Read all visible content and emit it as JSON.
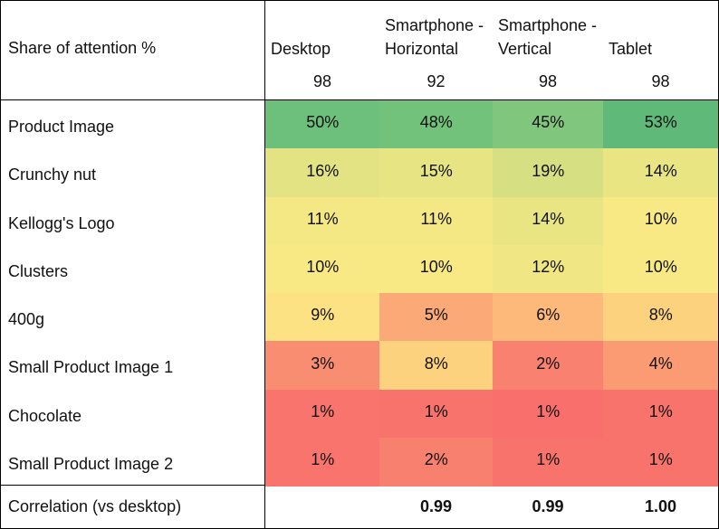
{
  "header": {
    "title": "Share of attention %",
    "columns": [
      "Desktop",
      "Smartphone - Horizontal",
      "Smartphone - Vertical",
      "Tablet"
    ],
    "counts": [
      98,
      92,
      98,
      98
    ]
  },
  "rows": [
    {
      "label": "Product Image",
      "cells": [
        "50%",
        "48%",
        "45%",
        "53%"
      ],
      "colors": [
        "#6cc07b",
        "#72c27c",
        "#80c67d",
        "#5fba79"
      ]
    },
    {
      "label": "Crunchy nut",
      "cells": [
        "16%",
        "15%",
        "19%",
        "14%"
      ],
      "colors": [
        "#e3e383",
        "#e6e483",
        "#d6df82",
        "#e9e583"
      ]
    },
    {
      "label": "Kellogg's Logo",
      "cells": [
        "11%",
        "11%",
        "14%",
        "10%"
      ],
      "colors": [
        "#f4e884",
        "#f4e884",
        "#e9e583",
        "#f8e984"
      ]
    },
    {
      "label": "Clusters",
      "cells": [
        "10%",
        "10%",
        "12%",
        "10%"
      ],
      "colors": [
        "#f8e984",
        "#f8e984",
        "#f0e784",
        "#f8e984"
      ]
    },
    {
      "label": "400g",
      "cells": [
        "9%",
        "5%",
        "6%",
        "8%"
      ],
      "colors": [
        "#fde283",
        "#fbaa77",
        "#fcb97a",
        "#fdd27f"
      ]
    },
    {
      "label": "Small Product Image 1",
      "cells": [
        "3%",
        "8%",
        "2%",
        "4%"
      ],
      "colors": [
        "#f98d72",
        "#fdd27f",
        "#f8816f",
        "#fa9b74"
      ]
    },
    {
      "label": "Chocolate",
      "cells": [
        "1%",
        "1%",
        "1%",
        "1%"
      ],
      "colors": [
        "#f8746d",
        "#f8736c",
        "#f86f6b",
        "#f8736c"
      ]
    },
    {
      "label": "Small Product Image 2",
      "cells": [
        "1%",
        "2%",
        "1%",
        "1%"
      ],
      "colors": [
        "#f8746d",
        "#f8806e",
        "#f8736c",
        "#f8736c"
      ]
    }
  ],
  "footer": {
    "label": "Correlation (vs desktop)",
    "cells": [
      "0.99",
      "0.99",
      "1.00"
    ]
  }
}
